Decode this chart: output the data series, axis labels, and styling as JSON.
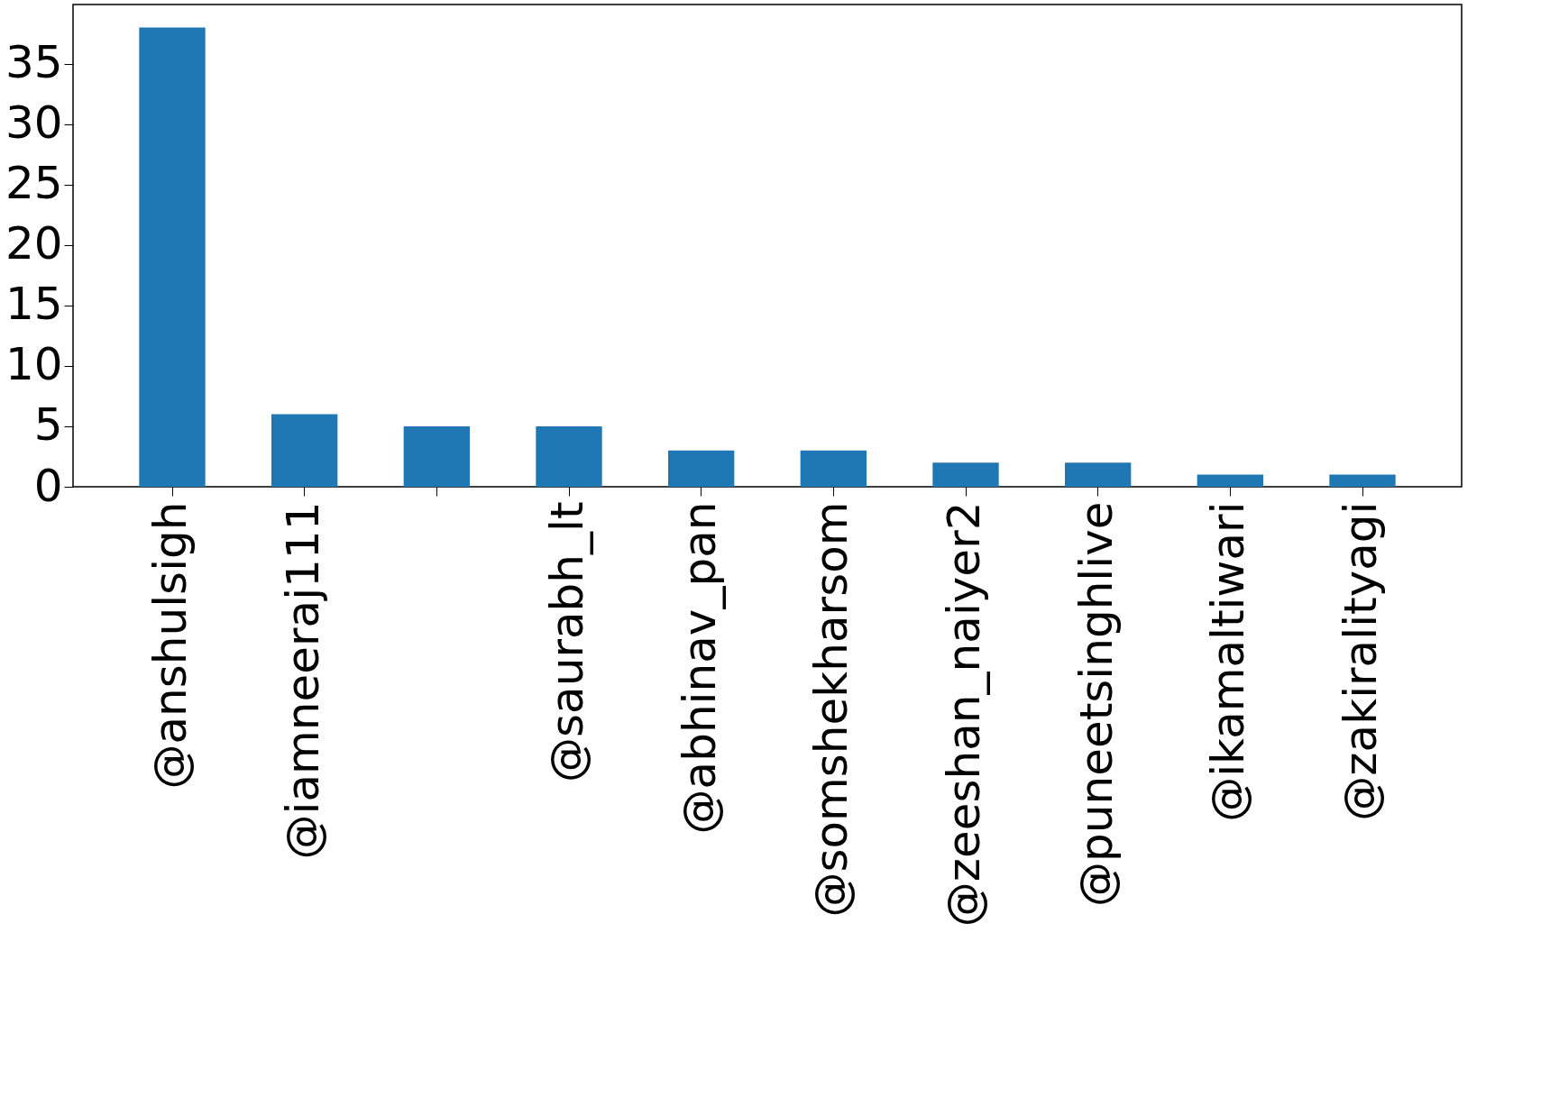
{
  "chart_data": {
    "type": "bar",
    "categories": [
      "@anshulsigh",
      "@iamneeraj111",
      null,
      "@saurabh_lt",
      "@abhinav_pan",
      "@somshekharsom",
      "@zeeshan_naiyer2",
      "@puneetsinghlive",
      "@ikamaltiwari",
      "@zakiralityagi"
    ],
    "values": [
      38,
      6,
      5,
      5,
      3,
      3,
      2,
      2,
      1,
      1
    ],
    "color": "#1f77b4",
    "ylim": [
      0,
      39.9
    ],
    "yticks": [
      0,
      5,
      10,
      15,
      20,
      25,
      30,
      35
    ],
    "grid": false
  }
}
